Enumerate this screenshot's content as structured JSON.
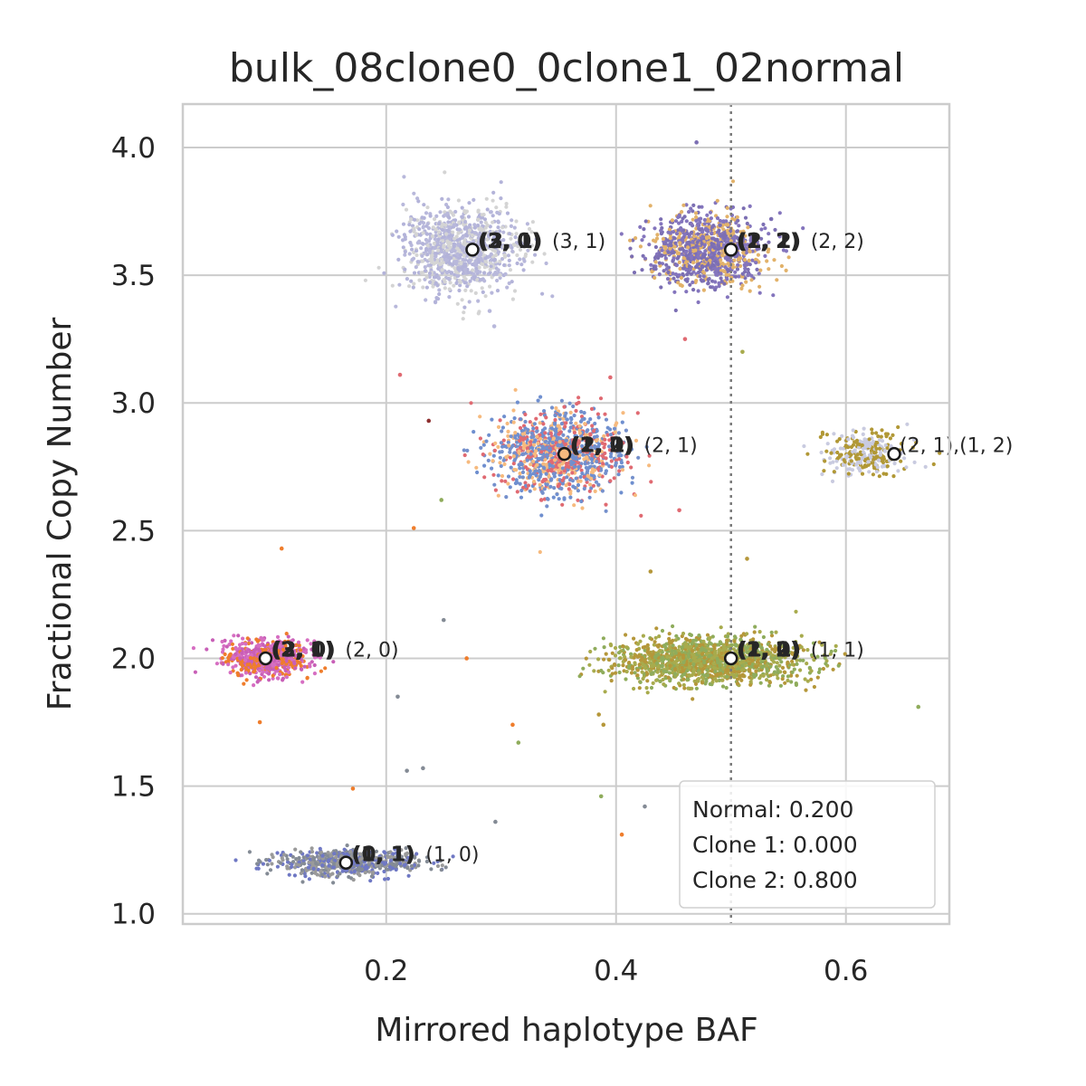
{
  "chart_data": {
    "type": "scatter",
    "title": "bulk_08clone0_0clone1_02normal",
    "xlabel": "Mirrored haplotype BAF",
    "ylabel": "Fractional Copy Number",
    "xlim": [
      0.023,
      0.69
    ],
    "ylim": [
      0.96,
      4.17
    ],
    "x_ticks": [
      0.2,
      0.4,
      0.6
    ],
    "x_tick_labels": [
      "0.2",
      "0.4",
      "0.6"
    ],
    "y_ticks": [
      1.0,
      1.5,
      2.0,
      2.5,
      3.0,
      3.5,
      4.0
    ],
    "y_tick_labels": [
      "1.0",
      "1.5",
      "2.0",
      "2.5",
      "3.0",
      "3.5",
      "4.0"
    ],
    "grid": true,
    "reference_line": {
      "x": 0.5,
      "style": "dotted"
    },
    "clusters": [
      {
        "x": 0.095,
        "y": 2.0,
        "sx": 0.018,
        "sy": 0.035,
        "n": 700,
        "colors": [
          "#c85fb7",
          "#d66ec2",
          "#ef7d2c"
        ]
      },
      {
        "x": 0.165,
        "y": 1.2,
        "sx": 0.032,
        "sy": 0.025,
        "n": 600,
        "colors": [
          "#6f78c4",
          "#848b95",
          "#9a9a9a"
        ]
      },
      {
        "x": 0.265,
        "y": 3.6,
        "sx": 0.025,
        "sy": 0.08,
        "n": 1000,
        "colors": [
          "#d4d4d4",
          "#b8b8db",
          "#b3b3d9"
        ]
      },
      {
        "x": 0.35,
        "y": 2.8,
        "sx": 0.028,
        "sy": 0.08,
        "n": 1100,
        "colors": [
          "#e06a72",
          "#6f8fcf",
          "#f6ba7e",
          "#7590cc"
        ]
      },
      {
        "x": 0.48,
        "y": 3.6,
        "sx": 0.025,
        "sy": 0.07,
        "n": 1000,
        "colors": [
          "#7c6fb3",
          "#8475bd",
          "#e2b26a"
        ]
      },
      {
        "x": 0.48,
        "y": 1.99,
        "sx": 0.04,
        "sy": 0.045,
        "n": 1400,
        "colors": [
          "#b5973a",
          "#a8ab4d",
          "#8fac5c"
        ]
      },
      {
        "x": 0.617,
        "y": 2.8,
        "sx": 0.018,
        "sy": 0.04,
        "n": 300,
        "colors": [
          "#c9cbe0",
          "#b19836"
        ]
      }
    ],
    "outliers": [
      {
        "x": 0.109,
        "y": 2.43,
        "color": "#ef7d2c"
      },
      {
        "x": 0.09,
        "y": 1.75,
        "color": "#ef7d2c"
      },
      {
        "x": 0.25,
        "y": 2.15,
        "color": "#848b95"
      },
      {
        "x": 0.21,
        "y": 1.85,
        "color": "#848b95"
      },
      {
        "x": 0.224,
        "y": 2.51,
        "color": "#ef7d2c"
      },
      {
        "x": 0.27,
        "y": 2.0,
        "color": "#ef7d2c"
      },
      {
        "x": 0.31,
        "y": 1.74,
        "color": "#ef7d2c"
      },
      {
        "x": 0.315,
        "y": 1.67,
        "color": "#8fac5c"
      },
      {
        "x": 0.295,
        "y": 1.36,
        "color": "#848b95"
      },
      {
        "x": 0.237,
        "y": 2.93,
        "color": "#8e3030"
      },
      {
        "x": 0.248,
        "y": 2.62,
        "color": "#8fac5c"
      },
      {
        "x": 0.218,
        "y": 1.56,
        "color": "#848b95"
      },
      {
        "x": 0.232,
        "y": 1.57,
        "color": "#848b95"
      },
      {
        "x": 0.171,
        "y": 1.49,
        "color": "#ef7d2c"
      },
      {
        "x": 0.212,
        "y": 3.11,
        "color": "#e06a72"
      },
      {
        "x": 0.387,
        "y": 1.46,
        "color": "#8fac5c"
      },
      {
        "x": 0.405,
        "y": 1.31,
        "color": "#ef7d2c"
      },
      {
        "x": 0.455,
        "y": 2.58,
        "color": "#e06a72"
      },
      {
        "x": 0.395,
        "y": 3.1,
        "color": "#e06a72"
      },
      {
        "x": 0.46,
        "y": 3.25,
        "color": "#e06a72"
      },
      {
        "x": 0.51,
        "y": 3.2,
        "color": "#a8ab4d"
      },
      {
        "x": 0.514,
        "y": 2.39,
        "color": "#b5973a"
      },
      {
        "x": 0.663,
        "y": 1.81,
        "color": "#8fac5c"
      },
      {
        "x": 0.385,
        "y": 1.78,
        "color": "#b5973a"
      },
      {
        "x": 0.389,
        "y": 1.74,
        "color": "#b5973a"
      },
      {
        "x": 0.43,
        "y": 2.34,
        "color": "#b5973a"
      },
      {
        "x": 0.425,
        "y": 1.42,
        "color": "#848b95"
      },
      {
        "x": 0.335,
        "y": 2.62,
        "color": "#e06a72"
      },
      {
        "x": 0.47,
        "y": 4.02,
        "color": "#7c6fb3"
      },
      {
        "x": 0.535,
        "y": 3.72,
        "color": "#7c6fb3"
      },
      {
        "x": 0.294,
        "y": 3.3,
        "color": "#b8b8db"
      },
      {
        "x": 0.29,
        "y": 3.36,
        "color": "#b8b8db"
      }
    ],
    "markers": [
      {
        "x": 0.095,
        "y": 2.0,
        "fill": "#ffffff",
        "label": "(2, 0)",
        "stacked": [
          "(2, 1)",
          "(3, 0)",
          "(2, 0)"
        ]
      },
      {
        "x": 0.165,
        "y": 1.2,
        "fill": "#ffffff",
        "label": "(1, 0)",
        "stacked": [
          "(1, 1)",
          "(0, 1)"
        ]
      },
      {
        "x": 0.275,
        "y": 3.6,
        "fill": "#ffffff",
        "label": "(3, 1)",
        "stacked": [
          "(3, 0)",
          "(2, 1)",
          "(3, 1)"
        ]
      },
      {
        "x": 0.355,
        "y": 2.8,
        "fill": "#f6ba7e",
        "label": "(2, 1)",
        "stacked": [
          "(1, 2)",
          "(2, 0)",
          "(2, 1)"
        ]
      },
      {
        "x": 0.5,
        "y": 3.6,
        "fill": "#ffffff",
        "label": "(2, 2)",
        "stacked": [
          "(1, 2)",
          "(2, 1)",
          "(2, 2)"
        ]
      },
      {
        "x": 0.5,
        "y": 2.0,
        "fill": "#ffffff",
        "label": "(1, 1)",
        "stacked": [
          "(1, 2)",
          "(2, 0)",
          "(1, 1)"
        ]
      },
      {
        "x": 0.642,
        "y": 2.8,
        "fill": "#ffffff",
        "label": "(2, 1),(1, 2)",
        "stacked": []
      }
    ],
    "legend_box": {
      "position": "lower-right",
      "lines": [
        "Normal: 0.200",
        "Clone 1: 0.000",
        "Clone 2: 0.800"
      ]
    }
  }
}
